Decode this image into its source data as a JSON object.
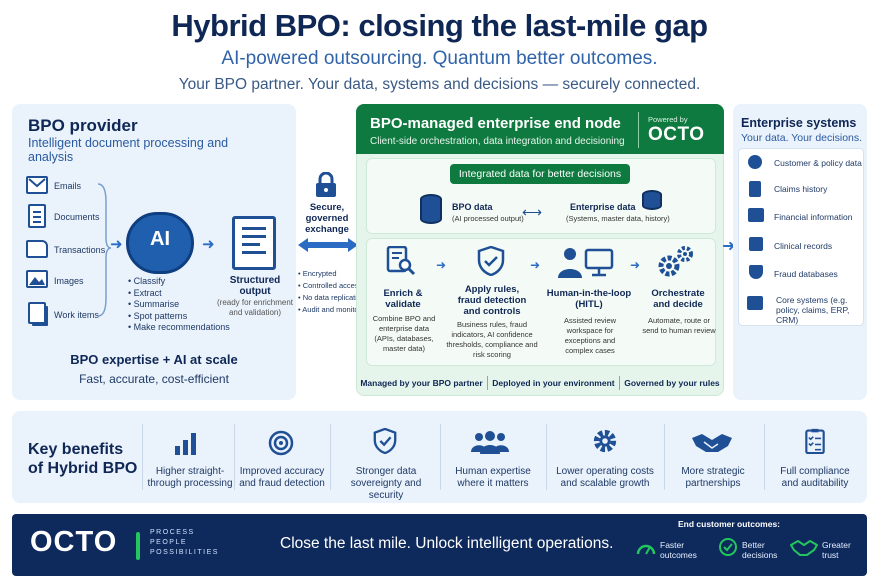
{
  "header": {
    "title": "Hybrid BPO: closing the last-mile gap",
    "subtitle": "AI-powered outsourcing. Quantum better outcomes.",
    "tagline": "Your BPO partner. Your data, systems and decisions — securely connected."
  },
  "bpo_provider": {
    "title": "BPO provider",
    "desc": "Intelligent document processing and analysis",
    "sources": [
      "Emails",
      "Documents",
      "Transactions",
      "Images",
      "Work items"
    ],
    "ai_label": "AI",
    "ai_steps": [
      "Classify",
      "Extract",
      "Summarise",
      "Spot patterns",
      "Make recommendations"
    ],
    "output_title": "Structured output",
    "output_desc": "(ready for enrichment and validation)",
    "expertise": "BPO expertise + AI at scale",
    "qualities": "Fast, accurate, cost-efficient"
  },
  "exchange": {
    "title": "Secure, governed exchange",
    "items": [
      "Encrypted",
      "Controlled access",
      "No data replication",
      "Audit and monitoring"
    ]
  },
  "end_node": {
    "title": "BPO-managed enterprise end node",
    "desc": "Client-side orchestration, data integration and decisioning",
    "powered_by": "Powered by",
    "brand": "OCTO",
    "integrated_banner": "Integrated data for better decisions",
    "bpo_data_title": "BPO data",
    "bpo_data_desc": "(AI processed output)",
    "ent_data_title": "Enterprise data",
    "ent_data_desc": "(Systems, master data, history)",
    "steps": [
      {
        "title": "Enrich & validate",
        "desc": "Combine BPO and enterprise data (APIs, databases, master data)"
      },
      {
        "title": "Apply rules, fraud detection and controls",
        "desc": "Business rules, fraud indicators, AI confidence thresholds, compliance and risk scoring"
      },
      {
        "title": "Human-in-the-loop (HITL)",
        "desc": "Assisted review workspace for exceptions and complex cases"
      },
      {
        "title": "Orchestrate and decide",
        "desc": "Automate, route or send to human review"
      }
    ],
    "footer": [
      "Managed by your BPO partner",
      "Deployed in your environment",
      "Governed by your rules"
    ]
  },
  "enterprise": {
    "title": "Enterprise systems",
    "desc": "Your data. Your decisions.",
    "items": [
      "Customer & policy data",
      "Claims history",
      "Financial information",
      "Clinical records",
      "Fraud databases",
      "Core systems (e.g. policy, claims, ERP, CRM)"
    ]
  },
  "benefits": {
    "title": "Key benefits of Hybrid BPO",
    "items": [
      {
        "icon": "bar-chart-icon",
        "text": "Higher straight-through processing"
      },
      {
        "icon": "target-icon",
        "text": "Improved accuracy and fraud detection"
      },
      {
        "icon": "shield-icon",
        "text": "Stronger data sovereignty and security"
      },
      {
        "icon": "people-icon",
        "text": "Human expertise where it matters"
      },
      {
        "icon": "gear-icon",
        "text": "Lower operating costs and scalable growth"
      },
      {
        "icon": "handshake-icon",
        "text": "More strategic partnerships"
      },
      {
        "icon": "checklist-icon",
        "text": "Full compliance and auditability"
      }
    ]
  },
  "footer": {
    "brand": "OCTO",
    "ppp": [
      "PROCESS",
      "PEOPLE",
      "POSSIBILITIES"
    ],
    "slogan": "Close the last mile. Unlock intelligent operations.",
    "outcomes_title": "End customer outcomes:",
    "outcomes": [
      "Faster outcomes",
      "Better decisions",
      "Greater trust"
    ]
  },
  "colors": {
    "navy": "#0f2755",
    "green": "#0f7a3f",
    "blue": "#1f4f94",
    "accent_green": "#22c55e"
  }
}
